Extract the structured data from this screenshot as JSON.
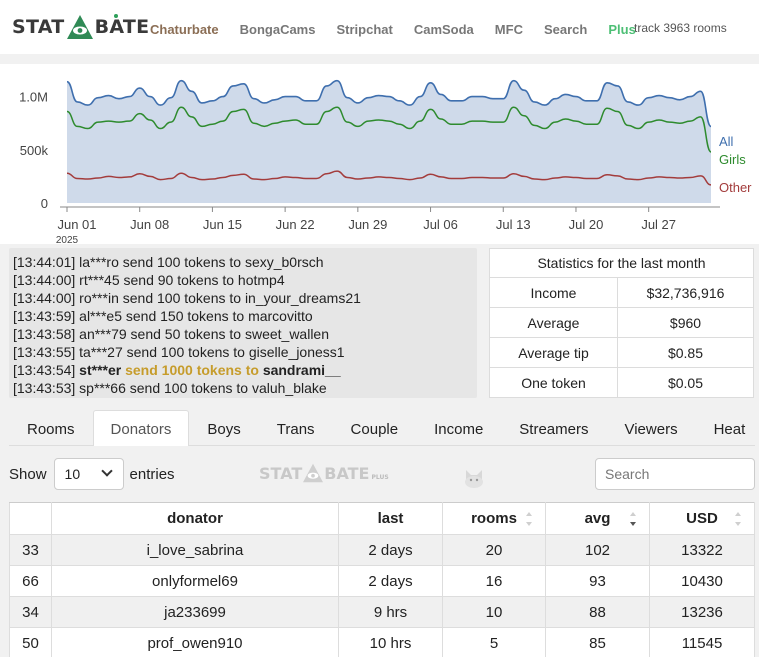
{
  "header": {
    "logo_left": "STAT",
    "logo_right": "BATE",
    "nav": [
      "Chaturbate",
      "BongaCams",
      "Stripchat",
      "CamSoda",
      "MFC",
      "Search",
      "Plus"
    ],
    "track_text": "track 3963 rooms"
  },
  "chart_data": {
    "type": "area",
    "x_ticks": [
      "Jun 01",
      "Jun 08",
      "Jun 15",
      "Jun 22",
      "Jun 29",
      "Jul 06",
      "Jul 13",
      "Jul 20",
      "Jul 27"
    ],
    "year_label": "2025",
    "y_ticks": [
      "0",
      "500k",
      "1.0M"
    ],
    "ylim": [
      0,
      1250000
    ],
    "x_days": [
      0,
      1,
      2,
      3,
      4,
      5,
      6,
      7,
      8,
      9,
      10,
      11,
      12,
      13,
      14,
      15,
      16,
      17,
      18,
      19,
      20,
      21,
      22,
      23,
      24,
      25,
      26,
      27,
      28,
      29,
      30,
      31,
      32,
      33,
      34,
      35,
      36,
      37,
      38,
      39,
      40,
      41,
      42,
      43,
      44,
      45,
      46,
      47,
      48,
      49,
      50,
      51,
      52,
      53,
      54,
      55,
      56,
      57,
      58,
      59,
      60,
      61,
      62
    ],
    "series": [
      {
        "name": "All",
        "color": "#3f6fae",
        "values": [
          1140000,
          950000,
          920000,
          990000,
          1010000,
          980000,
          1000000,
          1080000,
          1000000,
          920000,
          990000,
          1150000,
          1050000,
          940000,
          960000,
          1000000,
          1100000,
          1120000,
          980000,
          940000,
          970000,
          1000000,
          1000000,
          960000,
          960000,
          1100000,
          1150000,
          990000,
          940000,
          990000,
          1010000,
          1000000,
          960000,
          920000,
          1000000,
          1130000,
          1020000,
          960000,
          960000,
          1000000,
          1000000,
          980000,
          980000,
          1150000,
          1060000,
          950000,
          920000,
          980000,
          1020000,
          1000000,
          960000,
          960000,
          1130000,
          1100000,
          950000,
          920000,
          990000,
          1010000,
          990000,
          970000,
          1000000,
          1050000,
          720000
        ]
      },
      {
        "name": "Girls",
        "color": "#2e8b2e",
        "values": [
          860000,
          720000,
          700000,
          760000,
          770000,
          760000,
          770000,
          840000,
          780000,
          700000,
          760000,
          900000,
          810000,
          720000,
          740000,
          770000,
          860000,
          880000,
          750000,
          720000,
          750000,
          770000,
          780000,
          740000,
          740000,
          860000,
          900000,
          760000,
          720000,
          770000,
          780000,
          770000,
          740000,
          700000,
          770000,
          880000,
          790000,
          740000,
          740000,
          770000,
          770000,
          760000,
          760000,
          900000,
          820000,
          730000,
          700000,
          760000,
          790000,
          770000,
          740000,
          740000,
          890000,
          860000,
          730000,
          700000,
          760000,
          780000,
          760000,
          750000,
          770000,
          810000,
          480000
        ]
      },
      {
        "name": "Other",
        "color": "#a33c3c",
        "values": [
          280000,
          230000,
          225000,
          235000,
          250000,
          240000,
          245000,
          275000,
          250000,
          220000,
          230000,
          280000,
          240000,
          220000,
          225000,
          240000,
          260000,
          270000,
          225000,
          220000,
          230000,
          245000,
          240000,
          230000,
          230000,
          275000,
          300000,
          240000,
          225000,
          235000,
          245000,
          240000,
          230000,
          220000,
          235000,
          270000,
          245000,
          230000,
          230000,
          240000,
          240000,
          235000,
          235000,
          275000,
          250000,
          225000,
          220000,
          235000,
          245000,
          240000,
          230000,
          230000,
          265000,
          255000,
          225000,
          220000,
          235000,
          245000,
          240000,
          235000,
          240000,
          255000,
          170000
        ]
      }
    ]
  },
  "ticker": [
    {
      "prefix": "[13:44:01] la***ro send 100 tokens to sexy_b0rsch"
    },
    {
      "prefix": "[13:44:00] rt***45 send 90 tokens to hotmp4"
    },
    {
      "prefix": "[13:44:00] ro***in send 100 tokens to in_your_dreams21"
    },
    {
      "prefix": "[13:43:59] al***e5 send 150 tokens to marcovitto"
    },
    {
      "prefix": "[13:43:58] an***79 send 50 tokens to sweet_wallen"
    },
    {
      "prefix": "[13:43:55] ta***27 send 100 tokens to giselle_joness1"
    },
    {
      "prefix": "[13:43:54] ",
      "bold_user": "st***er",
      "gold": "send 1000 tokens to",
      "bold_target": "sandrami__"
    },
    {
      "prefix": "[13:43:53] sp***66 send 100 tokens to valuh_blake"
    }
  ],
  "stats": {
    "title": "Statistics for the last month",
    "rows": [
      {
        "label": "Income",
        "value": "$32,736,916"
      },
      {
        "label": "Average",
        "value": "$960"
      },
      {
        "label": "Average tip",
        "value": "$0.85"
      },
      {
        "label": "One token",
        "value": "$0.05"
      }
    ]
  },
  "tabs": [
    "Rooms",
    "Donators",
    "Boys",
    "Trans",
    "Couple",
    "Income",
    "Streamers",
    "Viewers",
    "Heat map"
  ],
  "controls": {
    "show_label": "Show",
    "entries_value": "10",
    "entries_label": "entries",
    "search_placeholder": "Search",
    "watermark_left": "STAT",
    "watermark_right": "BATE",
    "watermark_plus": "PLUS"
  },
  "table": {
    "headers": [
      "",
      "donator",
      "last",
      "rooms",
      "avg",
      "USD"
    ],
    "rows": [
      [
        "33",
        "i_love_sabrina",
        "2 days",
        "20",
        "102",
        "13322"
      ],
      [
        "66",
        "onlyformel69",
        "2 days",
        "16",
        "93",
        "10430"
      ],
      [
        "34",
        "ja233699",
        "9 hrs",
        "10",
        "88",
        "13236"
      ],
      [
        "50",
        "prof_owen910",
        "10 hrs",
        "5",
        "85",
        "11545"
      ]
    ]
  }
}
